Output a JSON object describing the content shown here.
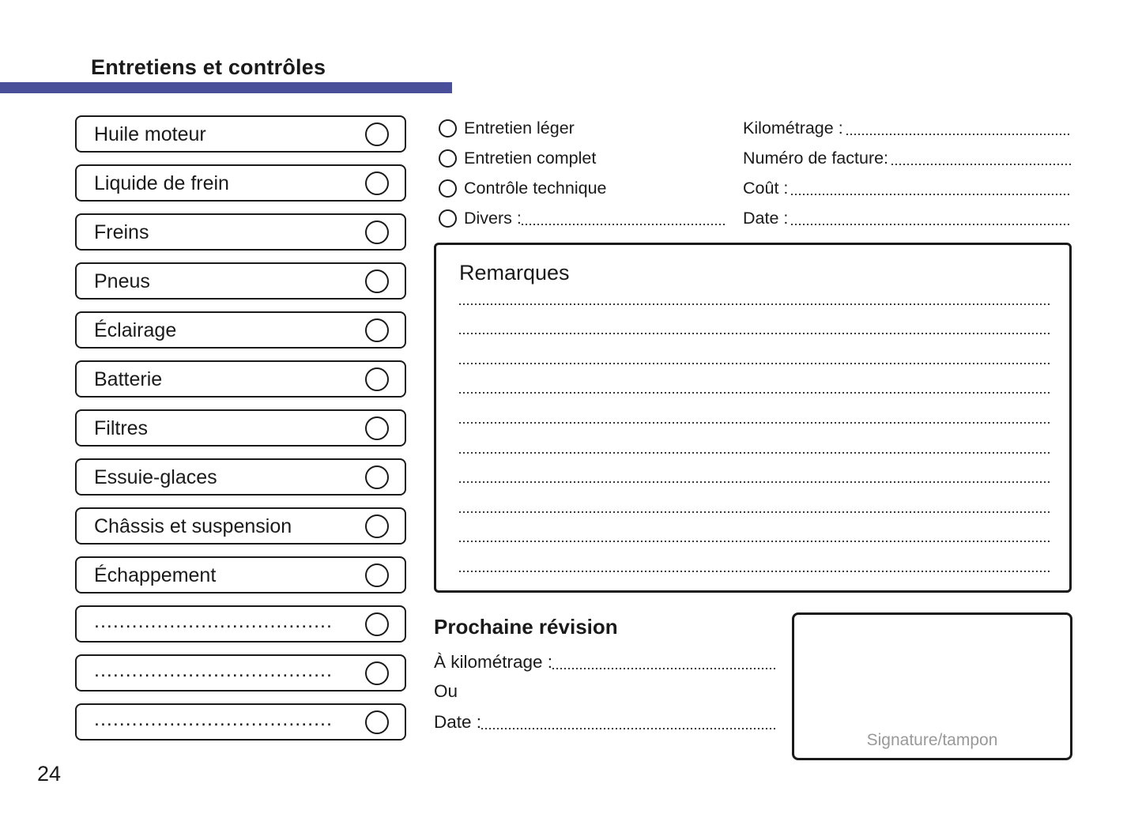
{
  "page": {
    "title": "Entretiens et contrôles",
    "number": "24",
    "accent_color": "#4a4f99"
  },
  "checklist": {
    "items": [
      {
        "label": "Huile moteur"
      },
      {
        "label": "Liquide de frein"
      },
      {
        "label": "Freins"
      },
      {
        "label": "Pneus"
      },
      {
        "label": "Éclairage"
      },
      {
        "label": "Batterie"
      },
      {
        "label": "Filtres"
      },
      {
        "label": "Essuie-glaces"
      },
      {
        "label": "Châssis et suspension"
      },
      {
        "label": "Échappement"
      },
      {
        "label": "......................................"
      },
      {
        "label": "......................................"
      },
      {
        "label": "......................................"
      }
    ]
  },
  "service_types": {
    "options": [
      {
        "label": "Entretien léger"
      },
      {
        "label": "Entretien complet"
      },
      {
        "label": "Contrôle technique"
      },
      {
        "label": "Divers :"
      }
    ]
  },
  "record_fields": {
    "items": [
      {
        "label": "Kilométrage :"
      },
      {
        "label": "Numéro de facture:"
      },
      {
        "label": "Coût :"
      },
      {
        "label": "Date :"
      }
    ]
  },
  "remarks": {
    "title": "Remarques",
    "line_count": 10
  },
  "next_service": {
    "title": "Prochaine révision",
    "km_label": "À kilométrage :",
    "or_label": "Ou",
    "date_label": "Date :"
  },
  "signature": {
    "label": "Signature/tampon"
  }
}
